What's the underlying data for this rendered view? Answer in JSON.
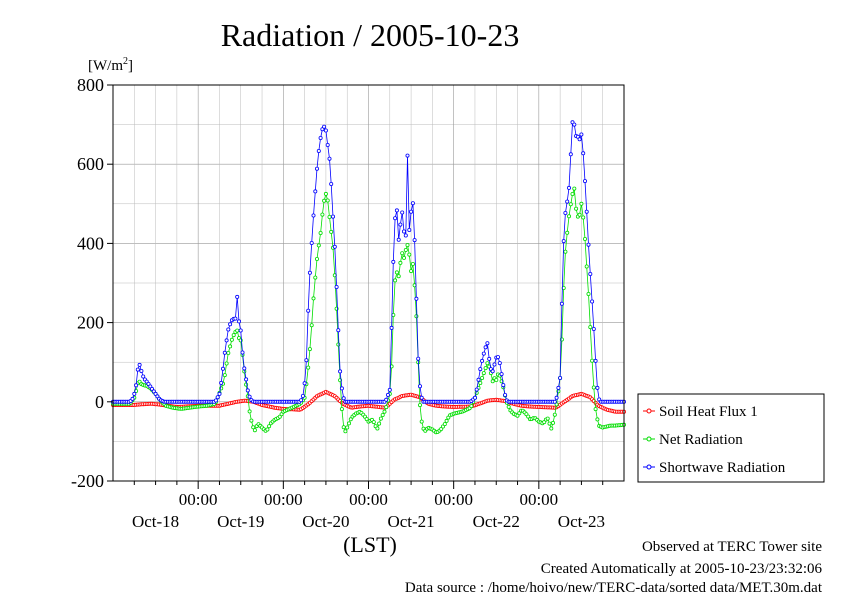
{
  "title": "Radiation / 2005-10-23",
  "footer": {
    "site": "Observed at TERC Tower site",
    "created": "Created Automatically at 2005-10-23/23:32:06",
    "source": "Data source : /home/hoivo/new/TERC-data/sorted  data/MET.30m.dat"
  },
  "chart_data": {
    "type": "line",
    "title": "Radiation / 2005-10-23",
    "ylabel_base": "[W/m",
    "ylabel_exp": "2",
    "ylabel_close": "]",
    "xlabel": "(LST)",
    "ylim": [
      -200,
      800
    ],
    "yticks": [
      -200,
      0,
      200,
      400,
      600,
      800
    ],
    "xlim": [
      0,
      6
    ],
    "x_unit": "days from start of Oct-18 (00:00 LST)",
    "xticks": [
      {
        "x": 1,
        "label": "00:00"
      },
      {
        "x": 2,
        "label": "00:00"
      },
      {
        "x": 3,
        "label": "00:00"
      },
      {
        "x": 4,
        "label": "00:00"
      },
      {
        "x": 5,
        "label": "00:00"
      }
    ],
    "day_labels": [
      {
        "x": 0.5,
        "label": "Oct-18"
      },
      {
        "x": 1.5,
        "label": "Oct-19"
      },
      {
        "x": 2.5,
        "label": "Oct-20"
      },
      {
        "x": 3.5,
        "label": "Oct-21"
      },
      {
        "x": 4.5,
        "label": "Oct-22"
      },
      {
        "x": 5.5,
        "label": "Oct-23"
      }
    ],
    "grid": true,
    "legend_position": "right",
    "series": [
      {
        "name": "Soil Heat Flux 1",
        "color": "#ff0000",
        "points": [
          [
            0.0,
            -8
          ],
          [
            0.25,
            -8
          ],
          [
            0.35,
            -6
          ],
          [
            0.45,
            -5
          ],
          [
            0.55,
            -7
          ],
          [
            0.65,
            -10
          ],
          [
            0.75,
            -13
          ],
          [
            0.85,
            -12
          ],
          [
            1.0,
            -10
          ],
          [
            1.25,
            -10
          ],
          [
            1.35,
            -5
          ],
          [
            1.45,
            0
          ],
          [
            1.55,
            3
          ],
          [
            1.65,
            0
          ],
          [
            1.75,
            -8
          ],
          [
            1.9,
            -15
          ],
          [
            2.0,
            -18
          ],
          [
            2.2,
            -20
          ],
          [
            2.3,
            -5
          ],
          [
            2.4,
            15
          ],
          [
            2.5,
            25
          ],
          [
            2.6,
            15
          ],
          [
            2.7,
            -5
          ],
          [
            2.8,
            -15
          ],
          [
            2.9,
            -12
          ],
          [
            3.0,
            -10
          ],
          [
            3.2,
            -15
          ],
          [
            3.3,
            5
          ],
          [
            3.4,
            15
          ],
          [
            3.5,
            18
          ],
          [
            3.6,
            12
          ],
          [
            3.7,
            -5
          ],
          [
            3.8,
            -10
          ],
          [
            3.9,
            -12
          ],
          [
            4.0,
            -13
          ],
          [
            4.2,
            -12
          ],
          [
            4.3,
            -5
          ],
          [
            4.4,
            3
          ],
          [
            4.5,
            5
          ],
          [
            4.6,
            2
          ],
          [
            4.7,
            -5
          ],
          [
            4.8,
            -10
          ],
          [
            4.9,
            -12
          ],
          [
            5.0,
            -13
          ],
          [
            5.2,
            -15
          ],
          [
            5.3,
            0
          ],
          [
            5.4,
            15
          ],
          [
            5.5,
            20
          ],
          [
            5.6,
            12
          ],
          [
            5.7,
            -10
          ],
          [
            5.8,
            -20
          ],
          [
            5.9,
            -25
          ],
          [
            6.0,
            -25
          ]
        ]
      },
      {
        "name": "Net Radiation",
        "color": "#00dd00",
        "points": [
          [
            0.0,
            -5
          ],
          [
            0.2,
            -5
          ],
          [
            0.25,
            10
          ],
          [
            0.28,
            35
          ],
          [
            0.3,
            55
          ],
          [
            0.33,
            45
          ],
          [
            0.36,
            42
          ],
          [
            0.4,
            40
          ],
          [
            0.45,
            32
          ],
          [
            0.5,
            20
          ],
          [
            0.55,
            5
          ],
          [
            0.62,
            -10
          ],
          [
            0.7,
            -15
          ],
          [
            0.8,
            -18
          ],
          [
            0.9,
            -15
          ],
          [
            1.0,
            -12
          ],
          [
            1.1,
            -10
          ],
          [
            1.2,
            -5
          ],
          [
            1.3,
            50
          ],
          [
            1.35,
            120
          ],
          [
            1.4,
            160
          ],
          [
            1.43,
            175
          ],
          [
            1.46,
            180
          ],
          [
            1.48,
            160
          ],
          [
            1.5,
            155
          ],
          [
            1.52,
            120
          ],
          [
            1.55,
            60
          ],
          [
            1.58,
            20
          ],
          [
            1.61,
            -35
          ],
          [
            1.64,
            -60
          ],
          [
            1.66,
            -75
          ],
          [
            1.7,
            -55
          ],
          [
            1.75,
            -65
          ],
          [
            1.8,
            -75
          ],
          [
            1.85,
            -55
          ],
          [
            1.9,
            -45
          ],
          [
            1.95,
            -40
          ],
          [
            2.0,
            -25
          ],
          [
            2.1,
            -15
          ],
          [
            2.2,
            -5
          ],
          [
            2.25,
            10
          ],
          [
            2.28,
            60
          ],
          [
            2.32,
            150
          ],
          [
            2.36,
            280
          ],
          [
            2.4,
            370
          ],
          [
            2.44,
            430
          ],
          [
            2.47,
            500
          ],
          [
            2.5,
            525
          ],
          [
            2.52,
            510
          ],
          [
            2.55,
            450
          ],
          [
            2.58,
            400
          ],
          [
            2.61,
            300
          ],
          [
            2.64,
            170
          ],
          [
            2.67,
            40
          ],
          [
            2.7,
            -60
          ],
          [
            2.73,
            -75
          ],
          [
            2.76,
            -60
          ],
          [
            2.8,
            -40
          ],
          [
            2.85,
            -30
          ],
          [
            2.9,
            -25
          ],
          [
            2.95,
            -35
          ],
          [
            3.0,
            -50
          ],
          [
            3.05,
            -45
          ],
          [
            3.1,
            -70
          ],
          [
            3.15,
            -40
          ],
          [
            3.2,
            -20
          ],
          [
            3.25,
            20
          ],
          [
            3.28,
            120
          ],
          [
            3.3,
            290
          ],
          [
            3.33,
            330
          ],
          [
            3.35,
            310
          ],
          [
            3.37,
            345
          ],
          [
            3.4,
            380
          ],
          [
            3.42,
            360
          ],
          [
            3.45,
            400
          ],
          [
            3.47,
            390
          ],
          [
            3.5,
            330
          ],
          [
            3.52,
            350
          ],
          [
            3.54,
            300
          ],
          [
            3.56,
            230
          ],
          [
            3.58,
            120
          ],
          [
            3.6,
            0
          ],
          [
            3.63,
            -60
          ],
          [
            3.66,
            -75
          ],
          [
            3.7,
            -65
          ],
          [
            3.75,
            -70
          ],
          [
            3.8,
            -78
          ],
          [
            3.85,
            -70
          ],
          [
            3.9,
            -55
          ],
          [
            3.95,
            -35
          ],
          [
            4.0,
            -30
          ],
          [
            4.1,
            -25
          ],
          [
            4.2,
            -15
          ],
          [
            4.25,
            10
          ],
          [
            4.3,
            40
          ],
          [
            4.35,
            70
          ],
          [
            4.4,
            100
          ],
          [
            4.43,
            80
          ],
          [
            4.46,
            50
          ],
          [
            4.48,
            60
          ],
          [
            4.5,
            55
          ],
          [
            4.53,
            75
          ],
          [
            4.55,
            60
          ],
          [
            4.58,
            40
          ],
          [
            4.62,
            0
          ],
          [
            4.66,
            -20
          ],
          [
            4.7,
            -30
          ],
          [
            4.75,
            -35
          ],
          [
            4.8,
            -20
          ],
          [
            4.85,
            -30
          ],
          [
            4.9,
            -45
          ],
          [
            4.95,
            -40
          ],
          [
            5.0,
            -50
          ],
          [
            5.05,
            -55
          ],
          [
            5.1,
            -40
          ],
          [
            5.15,
            -70
          ],
          [
            5.2,
            -20
          ],
          [
            5.25,
            60
          ],
          [
            5.28,
            200
          ],
          [
            5.3,
            350
          ],
          [
            5.33,
            420
          ],
          [
            5.36,
            480
          ],
          [
            5.4,
            530
          ],
          [
            5.42,
            540
          ],
          [
            5.44,
            480
          ],
          [
            5.47,
            460
          ],
          [
            5.5,
            500
          ],
          [
            5.53,
            450
          ],
          [
            5.56,
            350
          ],
          [
            5.59,
            250
          ],
          [
            5.62,
            120
          ],
          [
            5.66,
            -10
          ],
          [
            5.7,
            -60
          ],
          [
            5.75,
            -65
          ],
          [
            5.8,
            -62
          ],
          [
            5.85,
            -60
          ],
          [
            5.9,
            -60
          ],
          [
            6.0,
            -58
          ]
        ]
      },
      {
        "name": "Shortwave Radiation",
        "color": "#0000ff",
        "points": [
          [
            0.0,
            0
          ],
          [
            0.2,
            0
          ],
          [
            0.24,
            10
          ],
          [
            0.27,
            40
          ],
          [
            0.29,
            80
          ],
          [
            0.31,
            95
          ],
          [
            0.33,
            80
          ],
          [
            0.36,
            60
          ],
          [
            0.4,
            50
          ],
          [
            0.45,
            35
          ],
          [
            0.5,
            20
          ],
          [
            0.55,
            5
          ],
          [
            0.6,
            0
          ],
          [
            1.2,
            0
          ],
          [
            1.25,
            20
          ],
          [
            1.28,
            60
          ],
          [
            1.31,
            120
          ],
          [
            1.35,
            180
          ],
          [
            1.39,
            205
          ],
          [
            1.42,
            210
          ],
          [
            1.44,
            210
          ],
          [
            1.46,
            270
          ],
          [
            1.48,
            200
          ],
          [
            1.5,
            180
          ],
          [
            1.53,
            100
          ],
          [
            1.56,
            60
          ],
          [
            1.59,
            20
          ],
          [
            1.62,
            5
          ],
          [
            1.65,
            0
          ],
          [
            2.2,
            0
          ],
          [
            2.24,
            20
          ],
          [
            2.27,
            100
          ],
          [
            2.3,
            280
          ],
          [
            2.33,
            390
          ],
          [
            2.36,
            490
          ],
          [
            2.4,
            600
          ],
          [
            2.42,
            640
          ],
          [
            2.44,
            670
          ],
          [
            2.46,
            690
          ],
          [
            2.48,
            695
          ],
          [
            2.5,
            685
          ],
          [
            2.52,
            650
          ],
          [
            2.55,
            600
          ],
          [
            2.58,
            480
          ],
          [
            2.61,
            370
          ],
          [
            2.64,
            210
          ],
          [
            2.67,
            60
          ],
          [
            2.7,
            15
          ],
          [
            2.72,
            0
          ],
          [
            3.2,
            0
          ],
          [
            3.25,
            30
          ],
          [
            3.27,
            180
          ],
          [
            3.3,
            420
          ],
          [
            3.32,
            490
          ],
          [
            3.34,
            480
          ],
          [
            3.36,
            380
          ],
          [
            3.38,
            470
          ],
          [
            3.4,
            480
          ],
          [
            3.42,
            420
          ],
          [
            3.44,
            420
          ],
          [
            3.46,
            640
          ],
          [
            3.48,
            425
          ],
          [
            3.5,
            480
          ],
          [
            3.52,
            505
          ],
          [
            3.54,
            420
          ],
          [
            3.56,
            280
          ],
          [
            3.58,
            120
          ],
          [
            3.61,
            20
          ],
          [
            3.64,
            0
          ],
          [
            4.2,
            0
          ],
          [
            4.25,
            10
          ],
          [
            4.28,
            40
          ],
          [
            4.31,
            80
          ],
          [
            4.34,
            110
          ],
          [
            4.37,
            135
          ],
          [
            4.4,
            150
          ],
          [
            4.42,
            100
          ],
          [
            4.45,
            70
          ],
          [
            4.48,
            95
          ],
          [
            4.51,
            120
          ],
          [
            4.54,
            100
          ],
          [
            4.57,
            60
          ],
          [
            4.6,
            20
          ],
          [
            4.63,
            0
          ],
          [
            5.2,
            0
          ],
          [
            5.25,
            60
          ],
          [
            5.28,
            330
          ],
          [
            5.3,
            460
          ],
          [
            5.33,
            500
          ],
          [
            5.36,
            550
          ],
          [
            5.39,
            700
          ],
          [
            5.41,
            720
          ],
          [
            5.43,
            660
          ],
          [
            5.45,
            690
          ],
          [
            5.47,
            640
          ],
          [
            5.49,
            690
          ],
          [
            5.51,
            660
          ],
          [
            5.53,
            600
          ],
          [
            5.56,
            490
          ],
          [
            5.59,
            370
          ],
          [
            5.62,
            270
          ],
          [
            5.65,
            170
          ],
          [
            5.68,
            50
          ],
          [
            5.7,
            10
          ],
          [
            5.72,
            0
          ],
          [
            6.0,
            0
          ]
        ]
      }
    ]
  }
}
